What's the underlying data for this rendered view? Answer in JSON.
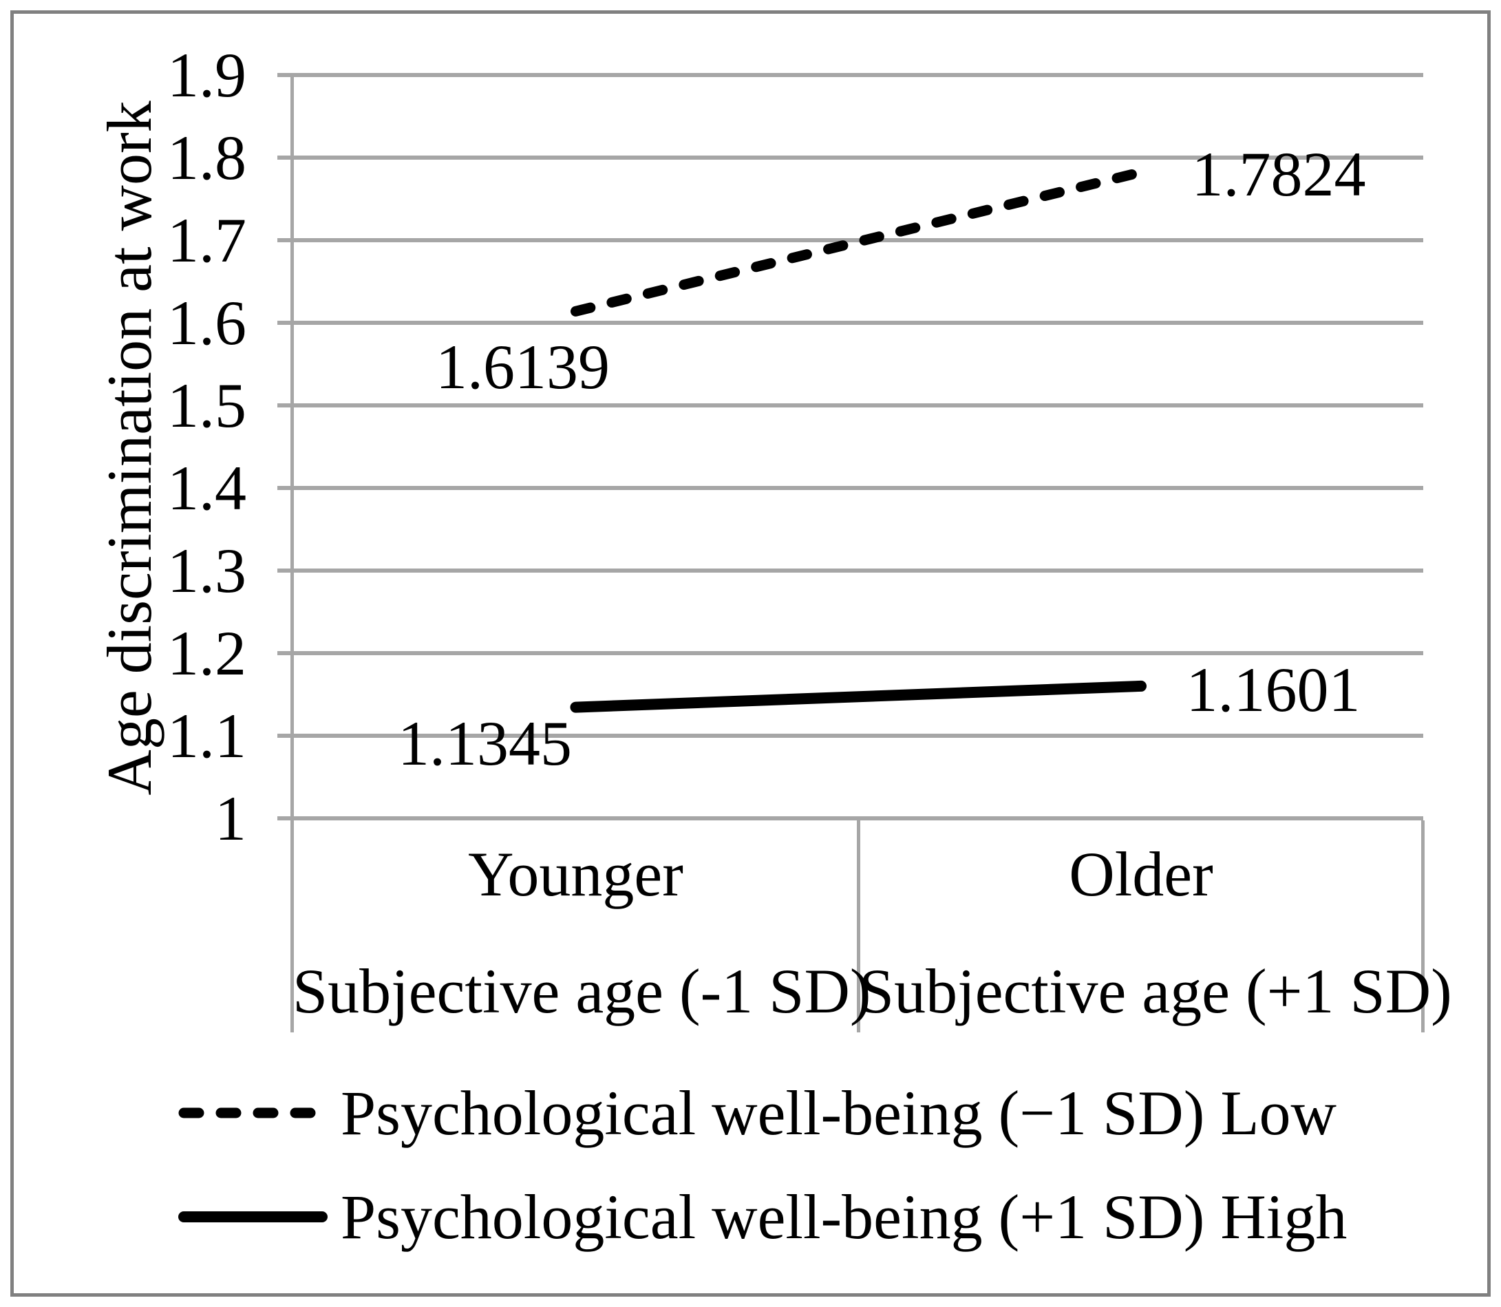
{
  "chart_data": {
    "type": "line",
    "title": "",
    "ylabel": "Age discrimination at work",
    "xlabel": "",
    "ylim": [
      1.0,
      1.9
    ],
    "grid": true,
    "legend_position": "bottom-left",
    "gridline_color": "#a6a6a6",
    "frame_color": "#808080",
    "line_color": "#000000",
    "yticks": [
      {
        "label": "1",
        "value": 1.0
      },
      {
        "label": "1.1",
        "value": 1.1
      },
      {
        "label": "1.2",
        "value": 1.2
      },
      {
        "label": "1.3",
        "value": 1.3
      },
      {
        "label": "1.4",
        "value": 1.4
      },
      {
        "label": "1.5",
        "value": 1.5
      },
      {
        "label": "1.6",
        "value": 1.6
      },
      {
        "label": "1.7",
        "value": 1.7
      },
      {
        "label": "1.8",
        "value": 1.8
      },
      {
        "label": "1.9",
        "value": 1.9
      }
    ],
    "categories": [
      {
        "line1": "Younger",
        "line2": "Subjective age (-1 SD)"
      },
      {
        "line1": "Older",
        "line2": "Subjective age (+1 SD)"
      }
    ],
    "series": [
      {
        "name": "Psychological well-being (−1 SD) Low",
        "style": "dashed",
        "values": [
          1.6139,
          1.7824
        ],
        "value_labels": [
          "1.6139",
          "1.7824"
        ]
      },
      {
        "name": "Psychological well-being (+1 SD) High",
        "style": "solid",
        "values": [
          1.1345,
          1.1601
        ],
        "value_labels": [
          "1.1345",
          "1.1601"
        ]
      }
    ]
  }
}
